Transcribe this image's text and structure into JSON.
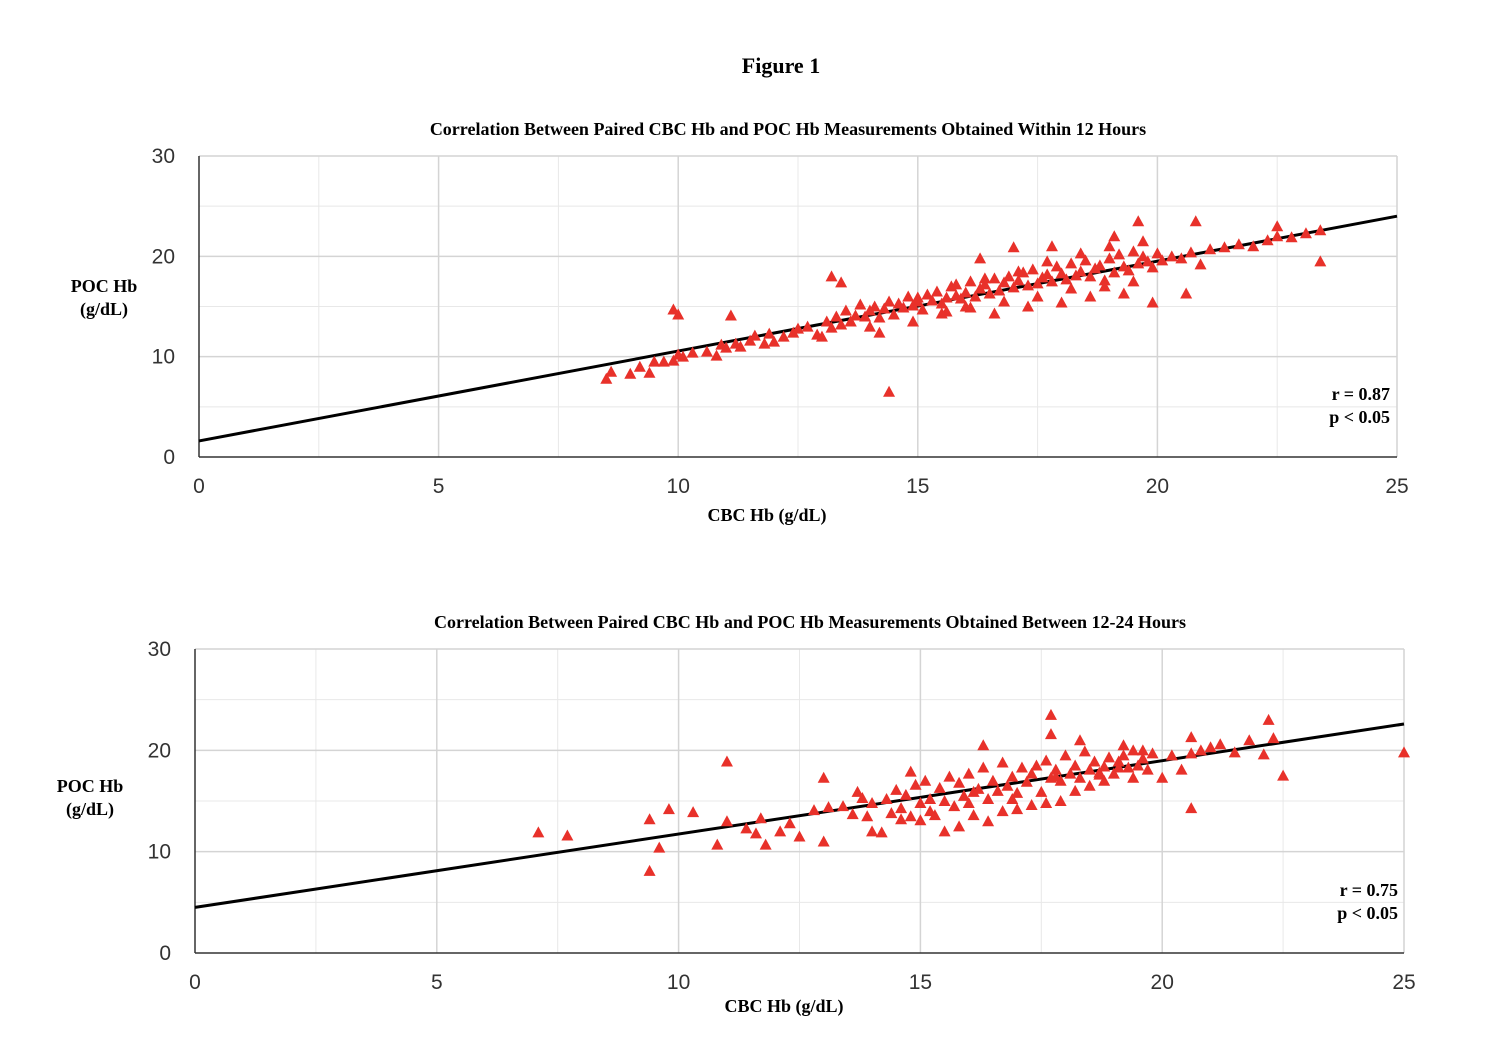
{
  "figure_title": "Figure 1",
  "colors": {
    "points": "#e8312a",
    "trendline": "#000000"
  },
  "chart_data": [
    {
      "type": "scatter",
      "title": "Correlation Between Paired CBC Hb and POC Hb Measurements Obtained Within 12 Hours",
      "xlabel": "CBC Hb (g/dL)",
      "ylabel_lines": [
        "POC Hb",
        "(g/dL)"
      ],
      "xlim": [
        0,
        25
      ],
      "ylim": [
        0,
        30
      ],
      "xticks": [
        "0",
        "5",
        "10",
        "15",
        "20",
        "25"
      ],
      "yticks": [
        "0",
        "10",
        "20",
        "30"
      ],
      "marker": "triangle",
      "grid": true,
      "stats": [
        "r = 0.87",
        "p < 0.05"
      ],
      "trendline": {
        "x": [
          0,
          25
        ],
        "y": [
          1.6,
          24.0
        ]
      },
      "points": {
        "x": [
          8.5,
          8.6,
          9.0,
          9.2,
          9.4,
          9.5,
          9.7,
          9.9,
          10.0,
          10.1,
          10.3,
          10.6,
          10.8,
          10.9,
          11.0,
          11.2,
          11.3,
          11.5,
          11.6,
          11.8,
          11.9,
          12.0,
          12.2,
          12.4,
          12.5,
          12.7,
          12.9,
          13.1,
          13.2,
          13.3,
          13.4,
          13.5,
          13.6,
          13.7,
          13.8,
          13.9,
          14.0,
          14.1,
          14.2,
          14.3,
          14.4,
          14.5,
          14.6,
          14.7,
          14.8,
          14.9,
          15.0,
          15.1,
          15.2,
          15.3,
          15.4,
          15.5,
          15.6,
          15.7,
          15.8,
          15.9,
          16.0,
          16.1,
          16.2,
          16.3,
          16.4,
          16.5,
          16.6,
          16.7,
          16.8,
          16.9,
          17.0,
          17.1,
          17.2,
          17.3,
          17.4,
          17.5,
          17.6,
          17.7,
          17.8,
          17.9,
          18.0,
          18.1,
          18.2,
          18.3,
          18.4,
          18.5,
          18.6,
          18.7,
          18.8,
          18.9,
          19.0,
          19.1,
          19.2,
          19.3,
          19.4,
          19.5,
          19.6,
          19.7,
          19.8,
          19.9,
          20.0,
          20.1,
          20.3,
          20.5,
          20.7,
          20.9,
          21.1,
          21.4,
          21.7,
          22.0,
          22.3,
          22.5,
          22.8,
          23.1,
          23.4,
          9.9,
          10.0,
          11.1,
          13.2,
          13.4,
          14.4,
          16.3,
          17.0,
          17.8,
          19.1,
          19.6,
          20.8,
          22.5,
          23.4,
          13.0,
          13.6,
          14.2,
          15.6,
          16.0,
          16.6,
          17.3,
          18.0,
          18.6,
          19.3,
          19.9,
          20.6,
          14.0,
          14.9,
          15.5,
          16.1,
          16.8,
          17.5,
          18.2,
          18.9,
          19.5,
          15.0,
          15.8,
          16.4,
          17.1,
          17.7,
          18.4,
          19.0,
          19.7
        ],
        "y": [
          7.8,
          8.5,
          8.3,
          9.0,
          8.4,
          9.5,
          9.5,
          9.6,
          10.2,
          10.0,
          10.4,
          10.5,
          10.1,
          11.2,
          10.9,
          11.3,
          11.0,
          11.6,
          12.1,
          11.3,
          12.3,
          11.5,
          12.0,
          12.4,
          12.8,
          13.0,
          12.2,
          13.5,
          12.9,
          14.0,
          13.2,
          14.6,
          13.5,
          14.1,
          15.2,
          14.0,
          14.6,
          15.0,
          13.9,
          14.8,
          15.5,
          14.2,
          15.3,
          14.9,
          16.0,
          15.1,
          15.5,
          14.7,
          16.2,
          15.6,
          16.5,
          15.3,
          15.9,
          17.0,
          16.1,
          15.8,
          16.4,
          17.5,
          16.0,
          16.8,
          17.2,
          16.3,
          17.8,
          16.6,
          17.4,
          18.0,
          16.9,
          17.6,
          18.4,
          17.1,
          18.7,
          17.3,
          17.9,
          18.2,
          17.5,
          19.0,
          18.3,
          17.7,
          19.3,
          18.1,
          18.5,
          19.6,
          18.0,
          18.8,
          19.1,
          17.6,
          19.8,
          18.4,
          20.2,
          19.0,
          18.6,
          20.5,
          19.3,
          20.0,
          19.5,
          18.9,
          20.3,
          19.6,
          20.0,
          19.8,
          20.4,
          19.2,
          20.7,
          20.9,
          21.2,
          21.0,
          21.6,
          22.0,
          21.9,
          22.3,
          22.6,
          14.7,
          14.2,
          14.1,
          18.0,
          17.4,
          6.5,
          19.8,
          20.9,
          21.0,
          22.0,
          23.5,
          23.5,
          23.0,
          19.5,
          12.0,
          13.5,
          12.4,
          14.5,
          15.0,
          14.3,
          15.0,
          15.4,
          16.0,
          16.3,
          15.4,
          16.3,
          13.0,
          13.5,
          14.3,
          14.9,
          15.5,
          16.0,
          16.8,
          17.0,
          17.5,
          15.9,
          17.2,
          17.8,
          18.5,
          19.5,
          20.3,
          21.0,
          21.5
        ]
      }
    },
    {
      "type": "scatter",
      "title": "Correlation Between Paired CBC Hb and POC Hb Measurements Obtained Between 12-24 Hours",
      "xlabel": "CBC Hb (g/dL)",
      "ylabel_lines": [
        "POC Hb",
        "(g/dL)"
      ],
      "xlim": [
        0,
        25
      ],
      "ylim": [
        0,
        30
      ],
      "xticks": [
        "0",
        "5",
        "10",
        "15",
        "20",
        "25"
      ],
      "yticks": [
        "0",
        "10",
        "20",
        "30"
      ],
      "marker": "triangle",
      "grid": true,
      "stats": [
        "r = 0.75",
        "p < 0.05"
      ],
      "trendline": {
        "x": [
          0,
          25
        ],
        "y": [
          4.5,
          22.6
        ]
      },
      "points": {
        "x": [
          7.1,
          7.7,
          9.4,
          9.4,
          9.6,
          9.8,
          10.3,
          10.8,
          11.0,
          11.4,
          11.6,
          11.7,
          11.8,
          12.1,
          12.3,
          12.5,
          12.8,
          13.0,
          13.1,
          13.4,
          13.6,
          13.7,
          13.8,
          13.9,
          14.0,
          14.2,
          14.3,
          14.4,
          14.5,
          14.6,
          14.7,
          14.8,
          14.9,
          15.0,
          15.1,
          15.2,
          15.3,
          15.4,
          15.5,
          15.6,
          15.7,
          15.8,
          15.9,
          16.0,
          16.1,
          16.2,
          16.3,
          16.4,
          16.5,
          16.6,
          16.7,
          16.8,
          16.9,
          17.0,
          17.1,
          17.2,
          17.3,
          17.4,
          17.5,
          17.6,
          17.7,
          17.8,
          17.9,
          18.0,
          18.1,
          18.2,
          18.3,
          18.4,
          18.5,
          18.6,
          18.7,
          18.8,
          18.9,
          19.0,
          19.1,
          19.2,
          19.3,
          19.4,
          19.5,
          19.6,
          19.7,
          19.8,
          20.0,
          20.2,
          20.4,
          20.6,
          20.8,
          21.0,
          21.2,
          21.5,
          21.8,
          22.1,
          22.3,
          22.5,
          25.0,
          11.0,
          13.0,
          14.8,
          16.3,
          17.7,
          17.7,
          18.3,
          19.2,
          20.6,
          22.2,
          15.2,
          15.8,
          16.4,
          17.0,
          17.6,
          18.2,
          18.8,
          19.4,
          15.5,
          16.1,
          16.7,
          17.3,
          17.9,
          18.5,
          19.1,
          14.0,
          14.6,
          15.0,
          16.0,
          16.9,
          17.8,
          18.7,
          19.6,
          20.6
        ],
        "y": [
          11.9,
          11.6,
          8.1,
          13.2,
          10.4,
          14.2,
          13.9,
          10.7,
          13.0,
          12.3,
          11.8,
          13.3,
          10.7,
          12.0,
          12.8,
          11.5,
          14.1,
          11.0,
          14.4,
          14.5,
          13.7,
          15.9,
          15.3,
          13.5,
          14.8,
          11.9,
          15.2,
          13.8,
          16.1,
          14.3,
          15.6,
          13.5,
          16.6,
          14.8,
          17.0,
          15.2,
          13.6,
          16.3,
          15.0,
          17.4,
          14.5,
          16.8,
          15.5,
          17.7,
          15.9,
          16.2,
          18.3,
          15.2,
          17.0,
          16.0,
          18.8,
          16.5,
          17.4,
          15.8,
          18.3,
          16.9,
          17.7,
          18.5,
          15.9,
          19.0,
          17.3,
          18.1,
          17.0,
          19.5,
          17.7,
          18.5,
          17.3,
          19.9,
          18.1,
          18.9,
          17.8,
          18.4,
          19.3,
          17.7,
          18.9,
          19.5,
          18.3,
          20.0,
          18.5,
          19.2,
          18.1,
          19.7,
          17.3,
          19.5,
          18.1,
          19.7,
          20.0,
          20.3,
          20.6,
          19.8,
          21.0,
          19.6,
          21.2,
          17.5,
          19.8,
          18.9,
          17.3,
          17.9,
          20.5,
          23.5,
          21.6,
          21.0,
          20.5,
          14.3,
          23.0,
          14.0,
          12.5,
          13.0,
          14.2,
          14.8,
          16.0,
          17.0,
          17.3,
          12.0,
          13.6,
          14.0,
          14.6,
          15.0,
          16.5,
          18.3,
          12.0,
          13.2,
          13.1,
          14.8,
          15.2,
          17.4,
          17.6,
          20.0,
          21.3
        ]
      }
    }
  ]
}
